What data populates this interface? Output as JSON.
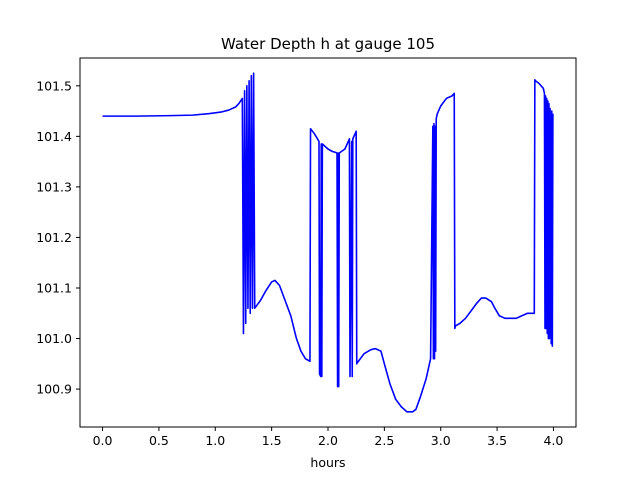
{
  "chart_data": {
    "type": "line",
    "title": "Water Depth h at gauge 105",
    "xlabel": "hours",
    "ylabel": "",
    "xlim": [
      -0.2,
      4.2
    ],
    "ylim": [
      100.825,
      101.555
    ],
    "x_ticks": [
      0.0,
      0.5,
      1.0,
      1.5,
      2.0,
      2.5,
      3.0,
      3.5,
      4.0
    ],
    "x_tick_labels": [
      "0.0",
      "0.5",
      "1.0",
      "1.5",
      "2.0",
      "2.5",
      "3.0",
      "3.5",
      "4.0"
    ],
    "y_ticks": [
      100.9,
      101.0,
      101.1,
      101.2,
      101.3,
      101.4,
      101.5
    ],
    "y_tick_labels": [
      "100.9",
      "101.0",
      "101.1",
      "101.2",
      "101.3",
      "101.4",
      "101.5"
    ],
    "grid": false,
    "series_color": "#0000ff",
    "series": [
      {
        "x": [
          0.0,
          0.3,
          0.6,
          0.8,
          0.95,
          1.05,
          1.12,
          1.18,
          1.21,
          1.24,
          1.25,
          1.26,
          1.27,
          1.28,
          1.29,
          1.3,
          1.31,
          1.32,
          1.33,
          1.34,
          1.35,
          1.4,
          1.45,
          1.5,
          1.53,
          1.57,
          1.62,
          1.67,
          1.72,
          1.76,
          1.8,
          1.84,
          1.845,
          1.88,
          1.92,
          1.925,
          1.935,
          1.94,
          1.945,
          1.95,
          2.0,
          2.04,
          2.07,
          2.08,
          2.085,
          2.09,
          2.095,
          2.1,
          2.15,
          2.18,
          2.19,
          2.195,
          2.21,
          2.215,
          2.22,
          2.24,
          2.25,
          2.255,
          2.26,
          2.27,
          2.32,
          2.38,
          2.42,
          2.47,
          2.5,
          2.55,
          2.6,
          2.65,
          2.7,
          2.75,
          2.78,
          2.82,
          2.87,
          2.91,
          2.93,
          2.935,
          2.94,
          2.945,
          2.95,
          2.955,
          2.96,
          2.97,
          3.0,
          3.05,
          3.1,
          3.12,
          3.125,
          3.13,
          3.17,
          3.22,
          3.27,
          3.32,
          3.36,
          3.4,
          3.45,
          3.48,
          3.52,
          3.57,
          3.62,
          3.67,
          3.72,
          3.77,
          3.8,
          3.83,
          3.835,
          3.84,
          3.87,
          3.91,
          3.92,
          3.925,
          3.93,
          3.935,
          3.94,
          3.945,
          3.95,
          3.955,
          3.96,
          3.965,
          3.97,
          3.98,
          3.985,
          3.99,
          3.995
        ],
        "y": [
          101.44,
          101.44,
          101.441,
          101.442,
          101.445,
          101.448,
          101.452,
          101.458,
          101.465,
          101.475,
          101.01,
          101.49,
          101.03,
          101.5,
          101.06,
          101.51,
          101.05,
          101.52,
          101.06,
          101.525,
          101.06,
          101.075,
          101.095,
          101.112,
          101.115,
          101.105,
          101.075,
          101.045,
          101.0,
          100.975,
          100.96,
          100.955,
          101.415,
          101.405,
          101.39,
          100.93,
          100.925,
          101.385,
          100.925,
          101.385,
          101.375,
          101.37,
          101.368,
          101.367,
          100.905,
          101.367,
          100.905,
          101.367,
          101.375,
          101.39,
          101.395,
          100.925,
          101.39,
          100.925,
          101.395,
          101.405,
          101.41,
          100.95,
          100.952,
          100.955,
          100.97,
          100.978,
          100.98,
          100.975,
          100.95,
          100.91,
          100.88,
          100.865,
          100.855,
          100.855,
          100.86,
          100.885,
          100.92,
          100.96,
          101.42,
          100.96,
          101.425,
          100.96,
          101.42,
          100.975,
          101.435,
          101.445,
          101.46,
          101.475,
          101.48,
          101.485,
          101.02,
          101.025,
          101.03,
          101.04,
          101.055,
          101.07,
          101.08,
          101.08,
          101.073,
          101.06,
          101.045,
          101.04,
          101.04,
          101.04,
          101.045,
          101.05,
          101.05,
          101.05,
          101.512,
          101.51,
          101.505,
          101.495,
          101.485,
          101.02,
          101.48,
          101.02,
          101.475,
          101.01,
          101.47,
          101.0,
          101.465,
          101.0,
          101.455,
          100.99,
          101.45,
          100.985,
          101.445
        ]
      }
    ]
  }
}
